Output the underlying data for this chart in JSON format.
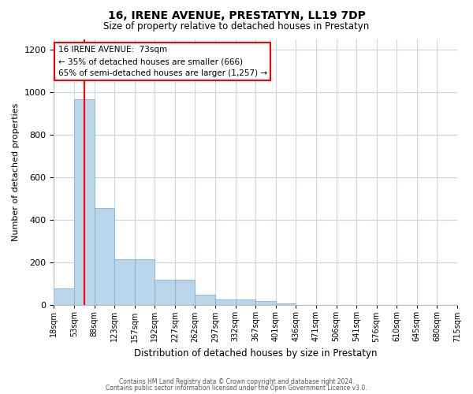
{
  "title": "16, IRENE AVENUE, PRESTATYN, LL19 7DP",
  "subtitle": "Size of property relative to detached houses in Prestatyn",
  "xlabel": "Distribution of detached houses by size in Prestatyn",
  "ylabel": "Number of detached properties",
  "bar_values": [
    80,
    970,
    455,
    215,
    215,
    120,
    120,
    50,
    25,
    25,
    20,
    10,
    0,
    0,
    0,
    0,
    0,
    0,
    0,
    0
  ],
  "bin_labels": [
    "18sqm",
    "53sqm",
    "88sqm",
    "123sqm",
    "157sqm",
    "192sqm",
    "227sqm",
    "262sqm",
    "297sqm",
    "332sqm",
    "367sqm",
    "401sqm",
    "436sqm",
    "471sqm",
    "506sqm",
    "541sqm",
    "576sqm",
    "610sqm",
    "645sqm",
    "680sqm",
    "715sqm"
  ],
  "n_bars": 20,
  "ylim": [
    0,
    1250
  ],
  "yticks": [
    0,
    200,
    400,
    600,
    800,
    1000,
    1200
  ],
  "bar_color": "#bad4ea",
  "bar_edge_color": "#7aa8cc",
  "annotation_box_text": "16 IRENE AVENUE:  73sqm\n← 35% of detached houses are smaller (666)\n65% of semi-detached houses are larger (1,257) →",
  "red_line_x": 1.5,
  "footer_line1": "Contains HM Land Registry data © Crown copyright and database right 2024.",
  "footer_line2": "Contains public sector information licensed under the Open Government Licence v3.0.",
  "background_color": "#ffffff",
  "grid_color": "#c8d4e8"
}
